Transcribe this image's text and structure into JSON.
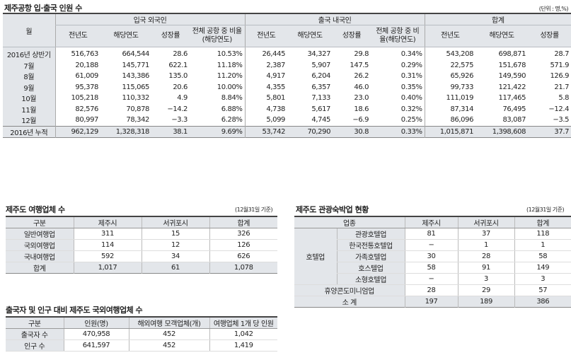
{
  "main": {
    "title": "제주공항 입·출국 인원 수",
    "unit": "(단위 : 명,%)",
    "header_month": "월",
    "groups": [
      "입국 외국인",
      "출국 내국인",
      "합계"
    ],
    "subheaders": {
      "prev": "전년도",
      "curr": "해당연도",
      "growth": "성장률",
      "share": "전체 공항 중 비율(해당연도)"
    },
    "rows": [
      {
        "month": "2016년 상반기",
        "in_prev": "516,763",
        "in_curr": "664,544",
        "in_growth": "28.6",
        "in_share": "10.53%",
        "out_prev": "26,445",
        "out_curr": "34,327",
        "out_growth": "29.8",
        "out_share": "0.34%",
        "tot_prev": "543,208",
        "tot_curr": "698,871",
        "tot_growth": "28.7"
      },
      {
        "month": "7월",
        "in_prev": "20,188",
        "in_curr": "145,771",
        "in_growth": "622.1",
        "in_share": "11.18%",
        "out_prev": "2,387",
        "out_curr": "5,907",
        "out_growth": "147.5",
        "out_share": "0.29%",
        "tot_prev": "22,575",
        "tot_curr": "151,678",
        "tot_growth": "571.9"
      },
      {
        "month": "8월",
        "in_prev": "61,009",
        "in_curr": "143,386",
        "in_growth": "135.0",
        "in_share": "11.20%",
        "out_prev": "4,917",
        "out_curr": "6,204",
        "out_growth": "26.2",
        "out_share": "0.31%",
        "tot_prev": "65,926",
        "tot_curr": "149,590",
        "tot_growth": "126.9"
      },
      {
        "month": "9월",
        "in_prev": "95,378",
        "in_curr": "115,065",
        "in_growth": "20.6",
        "in_share": "10.00%",
        "out_prev": "4,355",
        "out_curr": "6,357",
        "out_growth": "46.0",
        "out_share": "0.35%",
        "tot_prev": "99,733",
        "tot_curr": "121,422",
        "tot_growth": "21.7"
      },
      {
        "month": "10월",
        "in_prev": "105,218",
        "in_curr": "110,332",
        "in_growth": "4.9",
        "in_share": "8.84%",
        "out_prev": "5,801",
        "out_curr": "7,133",
        "out_growth": "23.0",
        "out_share": "0.40%",
        "tot_prev": "111,019",
        "tot_curr": "117,465",
        "tot_growth": "5.8"
      },
      {
        "month": "11월",
        "in_prev": "82,576",
        "in_curr": "70,878",
        "in_growth": "−14.2",
        "in_share": "6.88%",
        "out_prev": "4,738",
        "out_curr": "5,617",
        "out_growth": "18.6",
        "out_share": "0.32%",
        "tot_prev": "87,314",
        "tot_curr": "76,495",
        "tot_growth": "−12.4"
      },
      {
        "month": "12월",
        "in_prev": "80,997",
        "in_curr": "78,342",
        "in_growth": "−3.3",
        "in_share": "6.28%",
        "out_prev": "5,099",
        "out_curr": "4,745",
        "out_growth": "−6.9",
        "out_share": "0.25%",
        "tot_prev": "86,096",
        "tot_curr": "83,087",
        "tot_growth": "−3.5"
      }
    ],
    "total": {
      "month": "2016년 누적",
      "in_prev": "962,129",
      "in_curr": "1,328,318",
      "in_growth": "38.1",
      "in_share": "9.69%",
      "out_prev": "53,742",
      "out_curr": "70,290",
      "out_growth": "30.8",
      "out_share": "0.33%",
      "tot_prev": "1,015,871",
      "tot_curr": "1,398,608",
      "tot_growth": "37.7"
    }
  },
  "agency": {
    "title": "제주도 여행업체 수",
    "note": "(12월31일 기준)",
    "headers": [
      "구분",
      "제주시",
      "서귀포시",
      "합계"
    ],
    "rows": [
      [
        "일반여행업",
        "311",
        "15",
        "326"
      ],
      [
        "국외여행업",
        "114",
        "12",
        "126"
      ],
      [
        "국내여행업",
        "592",
        "34",
        "626"
      ]
    ],
    "total": [
      "합계",
      "1,017",
      "61",
      "1,078"
    ]
  },
  "lodging": {
    "title": "제주도 관광숙박업 현황",
    "note": "(12월31일 기준)",
    "headers": [
      "업종",
      "제주시",
      "서귀포시",
      "합계"
    ],
    "group_label": "호텔업",
    "hotel_rows": [
      [
        "관광호텔업",
        "81",
        "37",
        "118"
      ],
      [
        "한국전통호텔업",
        "−",
        "1",
        "1"
      ],
      [
        "가족호텔업",
        "30",
        "28",
        "58"
      ],
      [
        "호스텔업",
        "58",
        "91",
        "149"
      ],
      [
        "소형호텔업",
        "−",
        "3",
        "3"
      ]
    ],
    "condo_row": [
      "휴양콘도미니엄업",
      "28",
      "29",
      "57"
    ],
    "total": [
      "소 계",
      "197",
      "189",
      "386"
    ]
  },
  "ratio": {
    "title": "출국자 및 인구 대비 제주도 국외여행업체 수",
    "headers": [
      "구분",
      "인원(명)",
      "해외여행 모객업체(개)",
      "여행업체 1개 당 인원"
    ],
    "rows": [
      [
        "출국자 수",
        "470,958",
        "452",
        "1,042"
      ],
      [
        "인구 수",
        "641,597",
        "452",
        "1,419"
      ]
    ]
  }
}
